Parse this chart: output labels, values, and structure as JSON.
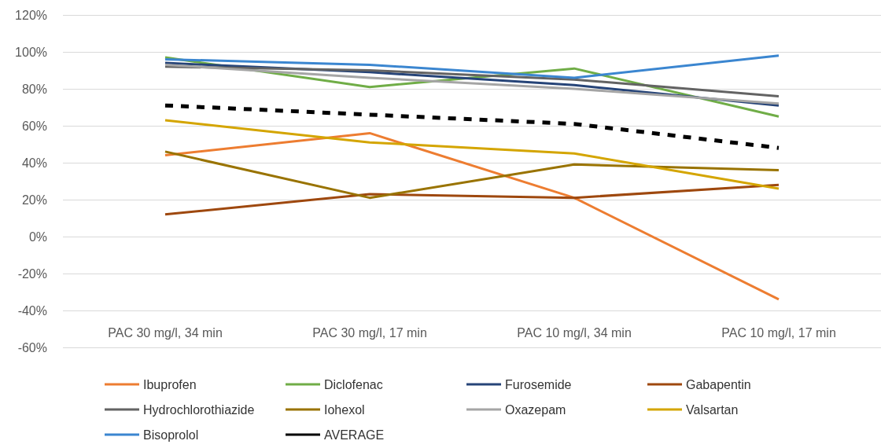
{
  "chart_data": {
    "type": "line",
    "categories": [
      "PAC 30 mg/l, 34 min",
      "PAC 30 mg/l, 17 min",
      "PAC 10 mg/l, 34 min",
      "PAC 10 mg/l, 17 min"
    ],
    "ylim": [
      -60,
      120
    ],
    "yticks": [
      {
        "value": -60,
        "label": "-60%"
      },
      {
        "value": -40,
        "label": "-40%"
      },
      {
        "value": -20,
        "label": "-20%"
      },
      {
        "value": 0,
        "label": "0%"
      },
      {
        "value": 20,
        "label": "20%"
      },
      {
        "value": 40,
        "label": "40%"
      },
      {
        "value": 60,
        "label": "60%"
      },
      {
        "value": 80,
        "label": "80%"
      },
      {
        "value": 100,
        "label": "100%"
      },
      {
        "value": 120,
        "label": "120%"
      }
    ],
    "grid": "y",
    "legend": "bottom",
    "marker": "none",
    "line_style": "solid",
    "series": [
      {
        "name": "Ibuprofen",
        "color": "#ed7d31",
        "values": [
          44,
          56,
          21,
          -34
        ]
      },
      {
        "name": "Diclofenac",
        "color": "#70ad47",
        "values": [
          97,
          81,
          91,
          65
        ]
      },
      {
        "name": "Furosemide",
        "color": "#264478",
        "values": [
          94,
          89,
          82,
          71
        ]
      },
      {
        "name": "Gabapentin",
        "color": "#9e480e",
        "values": [
          12,
          23,
          21,
          28
        ]
      },
      {
        "name": "Hydrochlorothiazide",
        "color": "#636363",
        "values": [
          92,
          90,
          85,
          76
        ]
      },
      {
        "name": "Iohexol",
        "color": "#997300",
        "values": [
          46,
          21,
          39,
          36
        ]
      },
      {
        "name": "Oxazepam",
        "color": "#a5a5a5",
        "values": [
          93,
          86,
          80,
          72
        ]
      },
      {
        "name": "Valsartan",
        "color": "#d4a500",
        "values": [
          63,
          51,
          45,
          26
        ]
      },
      {
        "name": "Bisoprolol",
        "color": "#3b86d0",
        "values": [
          96,
          93,
          86,
          98
        ]
      },
      {
        "name": "AVERAGE",
        "color": "#000000",
        "values": [
          71,
          66,
          61,
          48
        ],
        "line_style": "dashed"
      }
    ]
  }
}
